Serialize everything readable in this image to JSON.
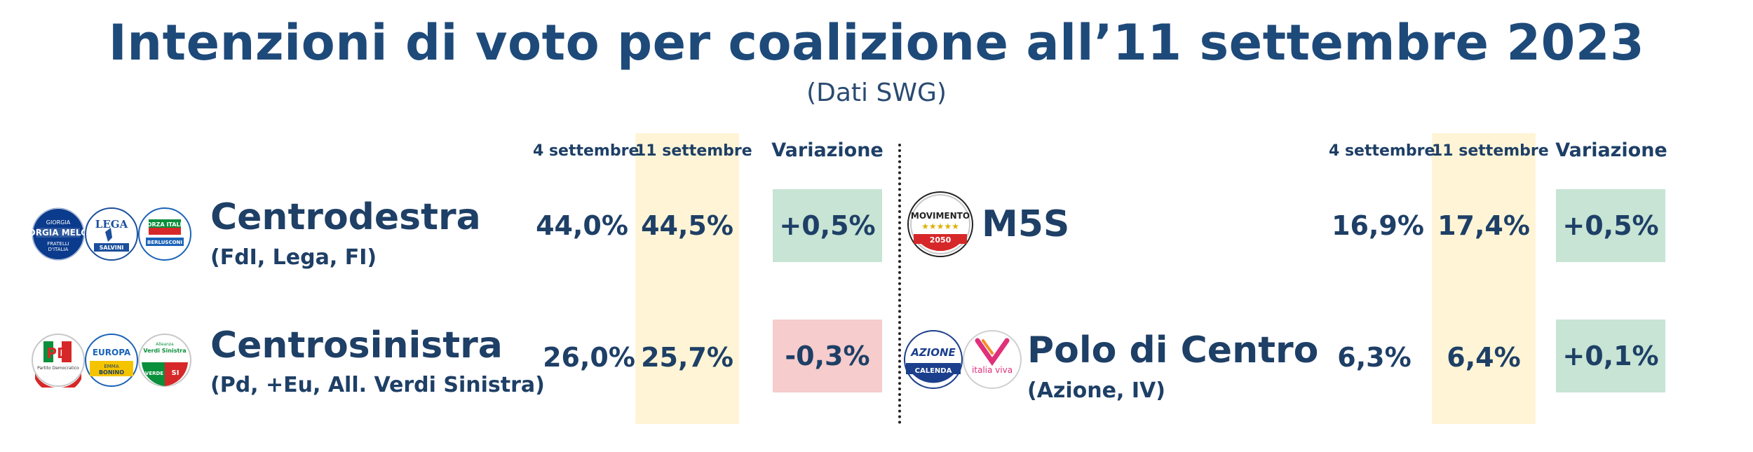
{
  "title": "Intenzioni di voto per coalizione all’11 settembre 2023",
  "subtitle": "(Dati SWG)",
  "columns": {
    "prev": "4 settembre",
    "curr": "11 settembre",
    "change": "Variazione"
  },
  "colors": {
    "positive_bg": "#c7e4d4",
    "negative_bg": "#f6cccc",
    "highlight_bg": "#fff5d6",
    "text": "#1e3f66"
  },
  "rows": [
    {
      "name": "Centrodestra",
      "sub": "(FdI, Lega, FI)",
      "prev": "44,0%",
      "curr": "44,5%",
      "change": "+0,5%",
      "logos": [
        {
          "icon": "fdi-logo",
          "text": "GIORGIA MELONI"
        },
        {
          "icon": "lega-logo",
          "text": "LEGA"
        },
        {
          "icon": "forza-italia-logo",
          "text": "FORZA ITALIA"
        }
      ]
    },
    {
      "name": "Centrosinistra",
      "sub": "(Pd, +Eu, All. Verdi Sinistra)",
      "prev": "26,0%",
      "curr": "25,7%",
      "change": "-0,3%",
      "logos": [
        {
          "icon": "pd-logo",
          "text": "PD"
        },
        {
          "icon": "piu-europa-logo",
          "text": "EUROPA"
        },
        {
          "icon": "avs-logo",
          "text": "Verdi Sinistra"
        }
      ]
    },
    {
      "name": "M5S",
      "sub": "",
      "prev": "16,9%",
      "curr": "17,4%",
      "change": "+0,5%",
      "logos": [
        {
          "icon": "m5s-logo",
          "text": "MOVIMENTO"
        }
      ]
    },
    {
      "name": "Polo di Centro",
      "sub": "(Azione, IV)",
      "prev": "6,3%",
      "curr": "6,4%",
      "change": "+0,1%",
      "logos": [
        {
          "icon": "azione-logo",
          "text": "AZIONE"
        },
        {
          "icon": "italia-viva-logo",
          "text": "italia viva"
        }
      ]
    }
  ],
  "chart_data": {
    "type": "table",
    "title": "Intenzioni di voto per coalizione all’11 settembre 2023",
    "subtitle": "(Dati SWG)",
    "columns": [
      "4 settembre",
      "11 settembre",
      "Variazione"
    ],
    "rows": [
      {
        "label": "Centrodestra",
        "values": [
          44.0,
          44.5,
          0.5
        ]
      },
      {
        "label": "Centrosinistra",
        "values": [
          26.0,
          25.7,
          -0.3
        ]
      },
      {
        "label": "M5S",
        "values": [
          16.9,
          17.4,
          0.5
        ]
      },
      {
        "label": "Polo di Centro",
        "values": [
          6.3,
          6.4,
          0.1
        ]
      }
    ]
  }
}
